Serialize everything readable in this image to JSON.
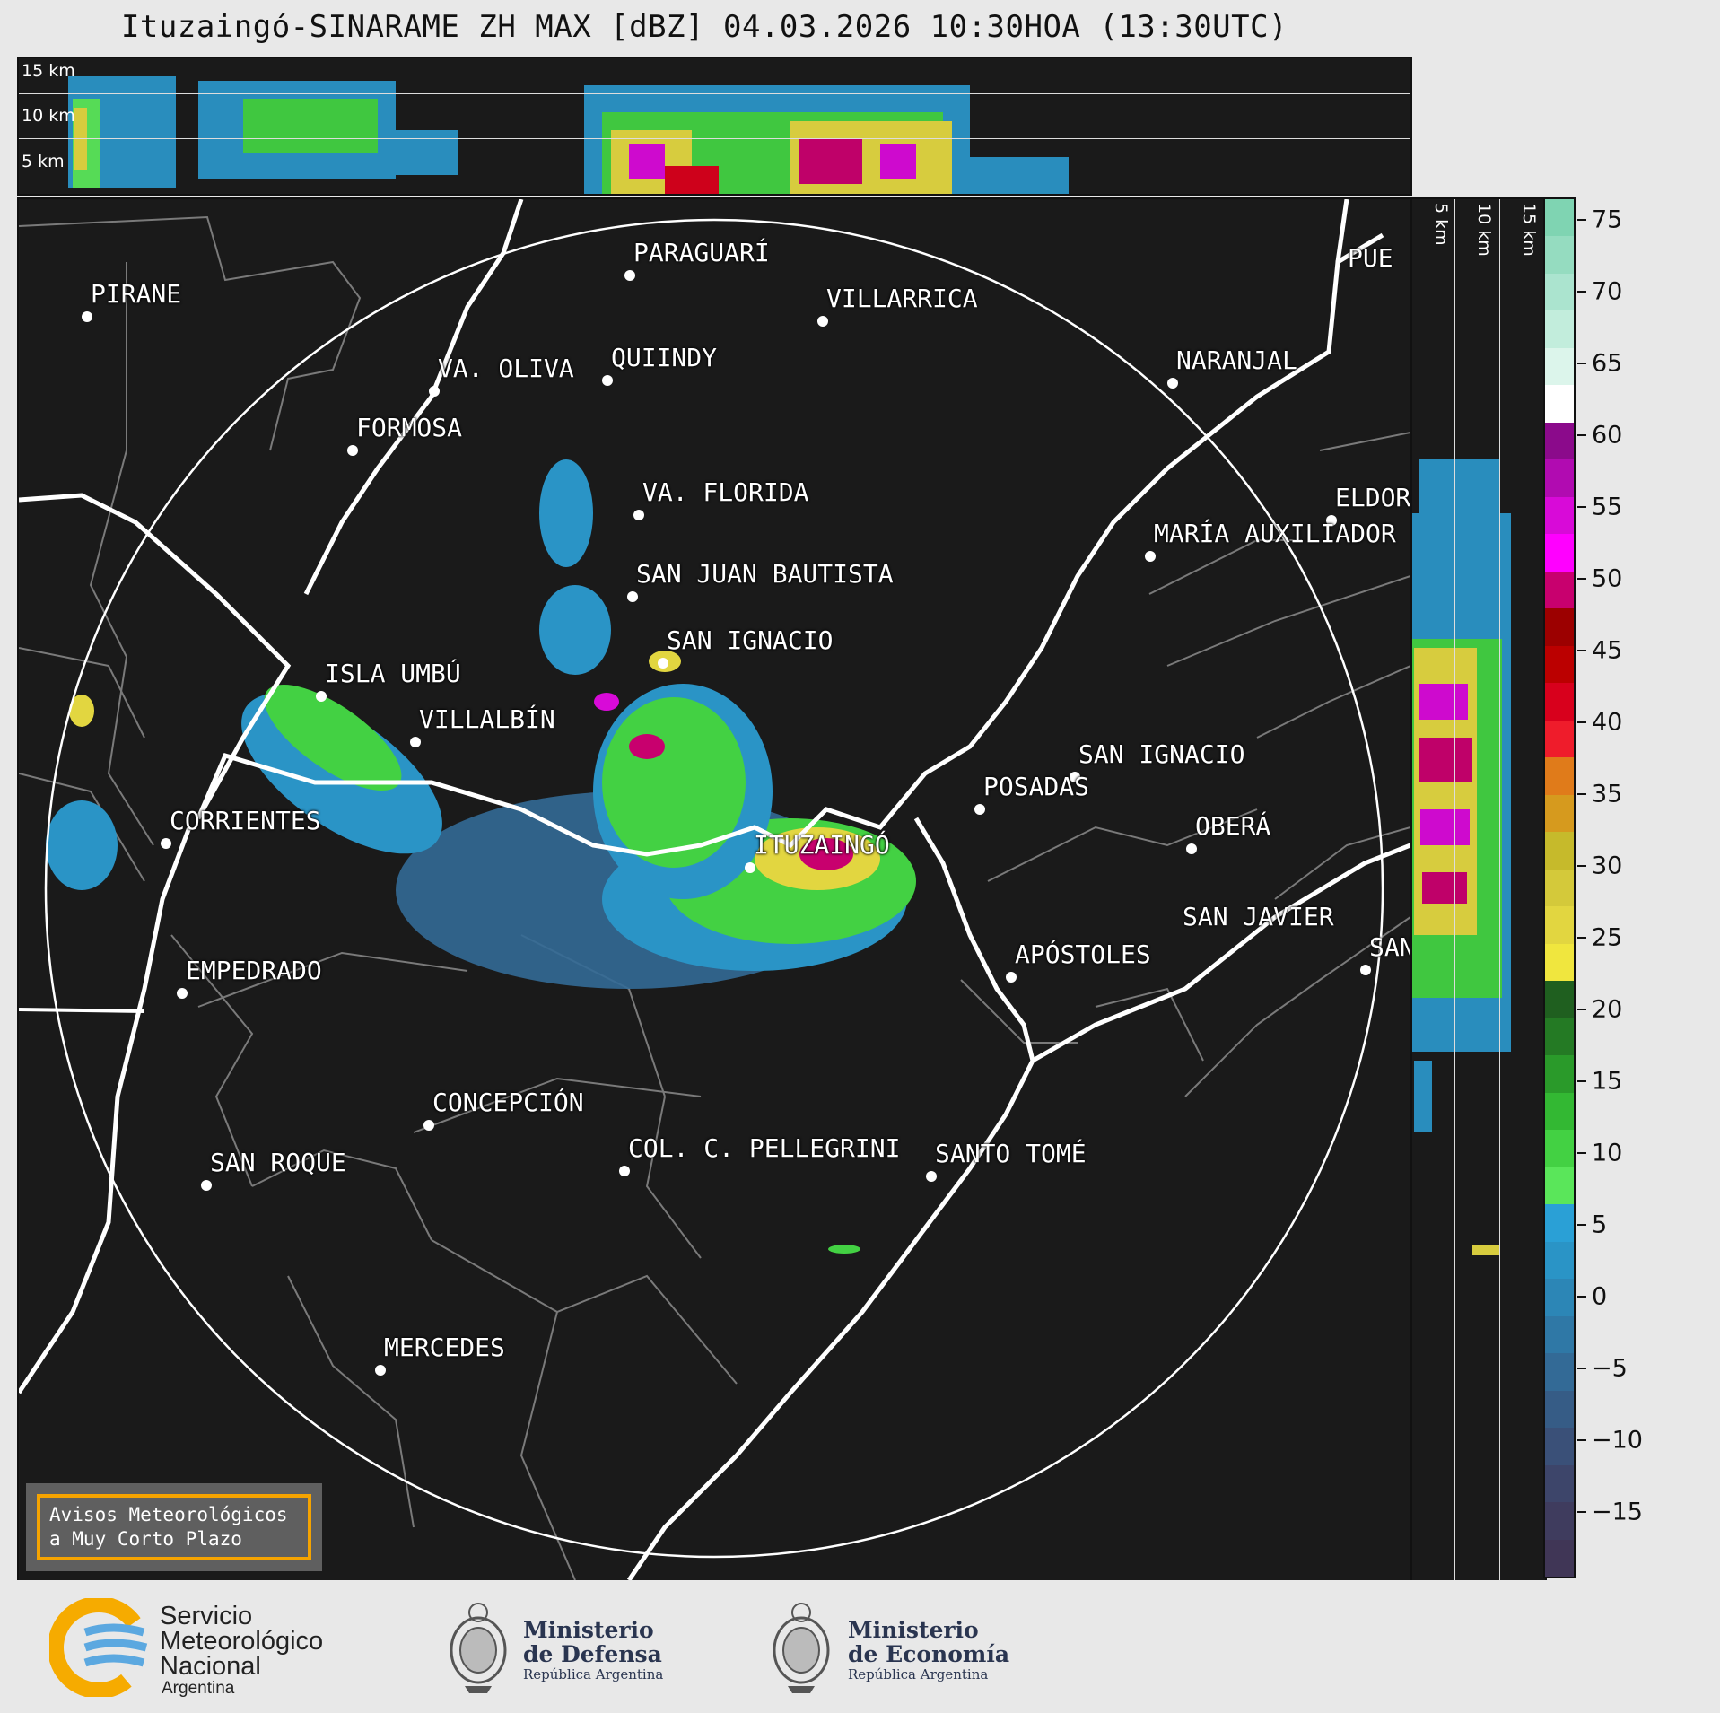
{
  "title": "Ituzaingó-SINARAME ZH MAX [dBZ] 04.03.2026 10:30HOA (13:30UTC)",
  "altitude_labels": {
    "km15": "15 km",
    "km10": "10 km",
    "km5": "5 km"
  },
  "colorbar": {
    "unit": "dBZ",
    "ticks": [
      "75",
      "70",
      "65",
      "60",
      "55",
      "50",
      "45",
      "40",
      "35",
      "30",
      "25",
      "20",
      "15",
      "10",
      "5",
      "0",
      "−5",
      "−10",
      "−15"
    ],
    "colors": {
      "high": [
        "#7fd4b2",
        "#95dcc0",
        "#abe4cf",
        "#c2eddc",
        "#dcf5eb",
        "#ffffff"
      ],
      "purple": [
        "#8b0a8b",
        "#b10bb1",
        "#d80ad8",
        "#ff00ff",
        "#c8006e"
      ],
      "red": [
        "#9c0000",
        "#bb0000",
        "#d8001c",
        "#ef1c2b"
      ],
      "orange": [
        "#e07b1a",
        "#d69a1e"
      ],
      "yellow": [
        "#c6ba2b",
        "#d4c93a",
        "#e2d640",
        "#f0e63e"
      ],
      "green": [
        "#1f5f1f",
        "#247a24",
        "#2a9a2a",
        "#33b833",
        "#43d143",
        "#5ae65a"
      ],
      "blue": [
        "#2aa0d6",
        "#2a94c6",
        "#2c86b6",
        "#2f78a6",
        "#336a96",
        "#365c86",
        "#3a5078",
        "#3d456a",
        "#3f3c5e",
        "#403656"
      ]
    }
  },
  "cities": [
    {
      "name": "PARAGUARÍ"
    },
    {
      "name": "VILLARRICA"
    },
    {
      "name": "PIRANE"
    },
    {
      "name": "QUIINDY"
    },
    {
      "name": "VA. OLIVA"
    },
    {
      "name": "NARANJAL"
    },
    {
      "name": "FORMOSA"
    },
    {
      "name": "VA. FLORIDA"
    },
    {
      "name": "ELDOR"
    },
    {
      "name": "MARÍA AUXILIADOR"
    },
    {
      "name": "SAN JUAN BAUTISTA"
    },
    {
      "name": "SAN IGNACIO"
    },
    {
      "name": "ISLA UMBÚ"
    },
    {
      "name": "VILLALBÍN"
    },
    {
      "name": "SAN IGNACIO"
    },
    {
      "name": "POSADAS"
    },
    {
      "name": "CORRIENTES"
    },
    {
      "name": "ITUZAINGÓ"
    },
    {
      "name": "OBERÁ"
    },
    {
      "name": "APÓSTOLES"
    },
    {
      "name": "SAN JAVIER"
    },
    {
      "name": "SAN"
    },
    {
      "name": "EMPEDRADO"
    },
    {
      "name": "CONCEPCIÓN"
    },
    {
      "name": "COL. C. PELLEGRINI"
    },
    {
      "name": "SANTO TOMÉ"
    },
    {
      "name": "SAN ROQUE"
    },
    {
      "name": "MERCEDES"
    },
    {
      "name": "PUE"
    }
  ],
  "warning": {
    "line1": "Avisos Meteorológicos",
    "line2": "a Muy Corto Plazo",
    "border_color": "#f5a300"
  },
  "footer": {
    "smn": {
      "line1": "Servicio",
      "line2": "Meteorológico",
      "line3": "Nacional",
      "line4": "Argentina"
    },
    "defensa": {
      "line1": "Ministerio",
      "line2": "de Defensa",
      "line3": "República Argentina"
    },
    "economia": {
      "line1": "Ministerio",
      "line2": "de Economía",
      "line3": "República Argentina"
    }
  },
  "style": {
    "background": "#1a1a1a",
    "range_ring": "#ffffff",
    "borders": "#7a7a7a",
    "rivers": "#ffffff"
  }
}
